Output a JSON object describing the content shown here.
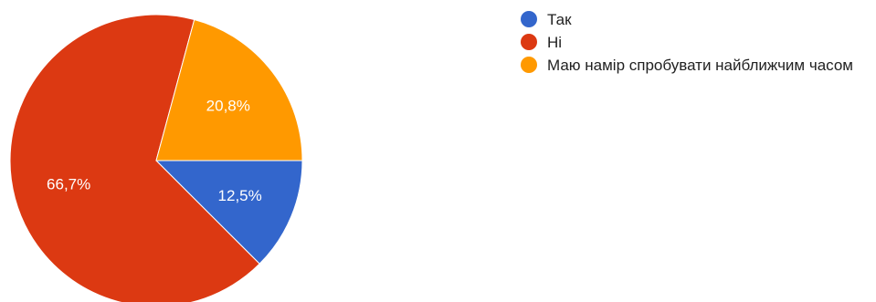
{
  "chart_data": {
    "type": "pie",
    "categories": [
      "Так",
      "Ні",
      "Маю намір спробувати найближчим часом"
    ],
    "values": [
      12.5,
      66.7,
      20.8
    ],
    "slice_labels": [
      "12,5%",
      "66,7%",
      "20,8%"
    ],
    "colors": [
      "#3366cc",
      "#dc3912",
      "#ff9900"
    ],
    "title": "",
    "legend_position": "right",
    "start_angle": "3 o'clock, clockwise"
  },
  "legend": {
    "items": [
      {
        "label": "Так",
        "color": "#3366cc"
      },
      {
        "label": "Ні",
        "color": "#dc3912"
      },
      {
        "label": "Маю намір спробувати найближчим часом",
        "color": "#ff9900"
      }
    ]
  }
}
